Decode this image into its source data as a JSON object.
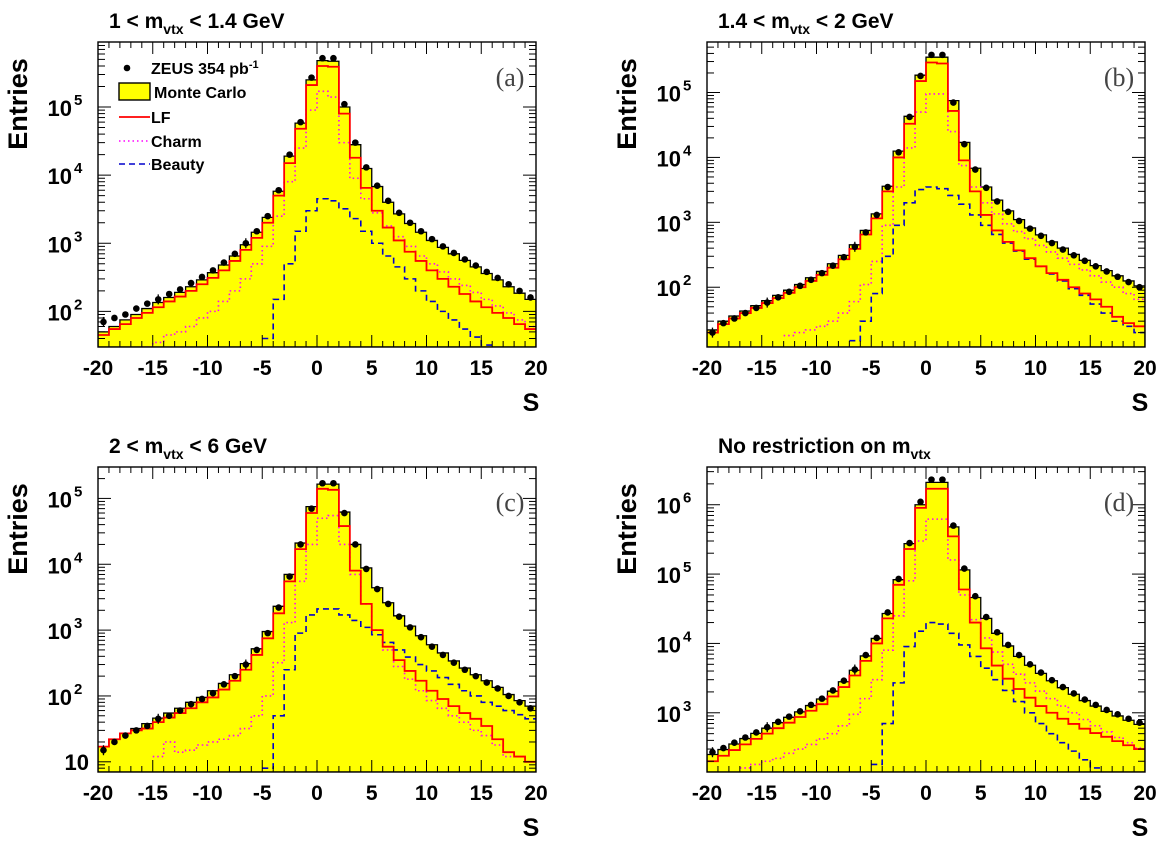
{
  "figure": {
    "legend": {
      "data": "ZEUS 354 pb",
      "data_sup": "-1",
      "mc": "Monte Carlo",
      "lf": "LF",
      "charm": "Charm",
      "beauty": "Beauty"
    },
    "colors": {
      "mc_fill": "#ffff00",
      "lf": "#ff0000",
      "charm": "#ff00ff",
      "beauty": "#0000cc",
      "data": "#000000"
    }
  },
  "chart_data": [
    {
      "type": "histogram",
      "panel": "(a)",
      "title": "1 < m_vtx < 1.4 GeV",
      "title_parts": {
        "pre": "1 < m",
        "sub": "vtx",
        "post": " < 1.4 GeV"
      },
      "xlabel": "S",
      "ylabel": "Entries",
      "xlim": [
        -20,
        20
      ],
      "ylim": [
        30,
        900000
      ],
      "log_y": true,
      "xticks": [
        "-20",
        "-15",
        "-10",
        "-5",
        "0",
        "5",
        "10",
        "15",
        "20"
      ],
      "yticks": [
        {
          "value": 100,
          "mantissa": "10",
          "exp": "2"
        },
        {
          "value": 1000,
          "mantissa": "10",
          "exp": "3"
        },
        {
          "value": 10000,
          "mantissa": "10",
          "exp": "4"
        },
        {
          "value": 100000,
          "mantissa": "10",
          "exp": "5"
        }
      ],
      "bin_edges": [
        -20,
        -19,
        -18,
        -17,
        -16,
        -15,
        -14,
        -13,
        -12,
        -11,
        -10,
        -9,
        -8,
        -7,
        -6,
        -5,
        -4,
        -3,
        -2,
        -1,
        0,
        1,
        2,
        3,
        4,
        5,
        6,
        7,
        8,
        9,
        10,
        11,
        12,
        13,
        14,
        15,
        16,
        17,
        18,
        19,
        20
      ],
      "data": [
        70,
        80,
        90,
        110,
        130,
        150,
        180,
        210,
        260,
        320,
        400,
        520,
        700,
        1000,
        1500,
        2500,
        6000,
        20000,
        60000,
        270000,
        520000,
        520000,
        110000,
        30000,
        13000,
        7000,
        4200,
        2800,
        2000,
        1500,
        1150,
        900,
        720,
        580,
        470,
        380,
        310,
        250,
        200,
        160
      ],
      "mc": [
        50,
        60,
        75,
        90,
        110,
        135,
        160,
        190,
        230,
        290,
        370,
        480,
        650,
        950,
        1450,
        2400,
        5800,
        19000,
        58000,
        250000,
        480000,
        470000,
        100000,
        28000,
        12500,
        6800,
        4000,
        2700,
        1950,
        1450,
        1100,
        870,
        700,
        560,
        450,
        360,
        290,
        230,
        185,
        150
      ],
      "lf": [
        45,
        55,
        65,
        80,
        95,
        115,
        140,
        165,
        200,
        250,
        310,
        400,
        550,
        800,
        1200,
        2000,
        5000,
        15000,
        48000,
        210000,
        400000,
        390000,
        80000,
        18000,
        6500,
        3000,
        1700,
        1100,
        750,
        550,
        400,
        300,
        230,
        180,
        140,
        115,
        95,
        80,
        65,
        55
      ],
      "charm": [
        null,
        null,
        null,
        null,
        30,
        35,
        45,
        50,
        60,
        80,
        100,
        140,
        200,
        300,
        500,
        900,
        2500,
        8000,
        25000,
        90000,
        170000,
        140000,
        30000,
        9000,
        4500,
        2800,
        1800,
        1250,
        900,
        650,
        500,
        380,
        300,
        240,
        190,
        150,
        120,
        95,
        75,
        60
      ],
      "beauty": [
        null,
        null,
        null,
        null,
        null,
        null,
        null,
        null,
        null,
        null,
        null,
        null,
        null,
        null,
        null,
        40,
        150,
        500,
        1500,
        3000,
        4500,
        4200,
        3200,
        2300,
        1500,
        1000,
        650,
        450,
        300,
        200,
        140,
        100,
        75,
        55,
        42,
        32,
        null,
        null,
        null,
        null
      ]
    },
    {
      "type": "histogram",
      "panel": "(b)",
      "title": "1.4 < m_vtx < 2 GeV",
      "title_parts": {
        "pre": "1.4 < m",
        "sub": "vtx",
        "post": " < 2 GeV"
      },
      "xlabel": "S",
      "ylabel": "Entries",
      "xlim": [
        -20,
        20
      ],
      "ylim": [
        12,
        600000
      ],
      "log_y": true,
      "xticks": [
        "-20",
        "-15",
        "-10",
        "-5",
        "0",
        "5",
        "10",
        "15",
        "20"
      ],
      "yticks": [
        {
          "value": 100,
          "mantissa": "10",
          "exp": "2"
        },
        {
          "value": 1000,
          "mantissa": "10",
          "exp": "3"
        },
        {
          "value": 10000,
          "mantissa": "10",
          "exp": "4"
        },
        {
          "value": 100000,
          "mantissa": "10",
          "exp": "5"
        }
      ],
      "bin_edges": [
        -20,
        -19,
        -18,
        -17,
        -16,
        -15,
        -14,
        -13,
        -12,
        -11,
        -10,
        -9,
        -8,
        -7,
        -6,
        -5,
        -4,
        -3,
        -2,
        -1,
        0,
        1,
        2,
        3,
        4,
        5,
        6,
        7,
        8,
        9,
        10,
        11,
        12,
        13,
        14,
        15,
        16,
        17,
        18,
        19,
        20
      ],
      "data": [
        20,
        28,
        33,
        40,
        48,
        58,
        70,
        85,
        105,
        130,
        165,
        215,
        290,
        420,
        700,
        1300,
        3500,
        12000,
        42000,
        180000,
        380000,
        380000,
        70000,
        16000,
        6500,
        3400,
        2100,
        1450,
        1050,
        800,
        620,
        480,
        380,
        310,
        255,
        210,
        175,
        145,
        120,
        100
      ],
      "mc": [
        22,
        30,
        36,
        43,
        52,
        62,
        75,
        90,
        110,
        140,
        175,
        230,
        310,
        450,
        750,
        1350,
        3600,
        12500,
        43000,
        185000,
        350000,
        350000,
        75000,
        17000,
        6800,
        3500,
        2200,
        1500,
        1100,
        820,
        640,
        500,
        400,
        320,
        260,
        215,
        180,
        150,
        125,
        105
      ],
      "lf": [
        20,
        27,
        33,
        40,
        48,
        57,
        68,
        82,
        100,
        125,
        155,
        200,
        270,
        390,
        650,
        1150,
        3000,
        10000,
        33000,
        150000,
        290000,
        280000,
        52000,
        9000,
        3000,
        1300,
        750,
        500,
        370,
        280,
        210,
        165,
        130,
        100,
        80,
        65,
        50,
        35,
        28,
        25
      ],
      "charm": [
        null,
        null,
        null,
        null,
        null,
        null,
        null,
        18,
        20,
        22,
        25,
        30,
        40,
        60,
        110,
        250,
        900,
        3500,
        14000,
        50000,
        95000,
        95000,
        25000,
        7500,
        3500,
        2000,
        1350,
        950,
        720,
        560,
        440,
        350,
        280,
        225,
        185,
        150,
        120,
        100,
        80,
        65
      ],
      "beauty": [
        null,
        null,
        null,
        null,
        null,
        null,
        null,
        null,
        null,
        null,
        null,
        null,
        null,
        15,
        30,
        80,
        300,
        900,
        2000,
        3200,
        3500,
        3300,
        2600,
        1900,
        1300,
        900,
        650,
        480,
        360,
        270,
        210,
        160,
        125,
        95,
        75,
        55,
        40,
        30,
        25,
        20
      ]
    },
    {
      "type": "histogram",
      "panel": "(c)",
      "title": "2 < m_vtx < 6 GeV",
      "title_parts": {
        "pre": "2 < m",
        "sub": "vtx",
        "post": " < 6 GeV"
      },
      "xlabel": "S",
      "ylabel": "Entries",
      "xlim": [
        -20,
        20
      ],
      "ylim": [
        7,
        300000
      ],
      "log_y": true,
      "xticks": [
        "-20",
        "-15",
        "-10",
        "-5",
        "0",
        "5",
        "10",
        "15",
        "20"
      ],
      "yticks": [
        {
          "value": 10,
          "mantissa": "10",
          "exp": ""
        },
        {
          "value": 100,
          "mantissa": "10",
          "exp": "2"
        },
        {
          "value": 1000,
          "mantissa": "10",
          "exp": "3"
        },
        {
          "value": 10000,
          "mantissa": "10",
          "exp": "4"
        },
        {
          "value": 100000,
          "mantissa": "10",
          "exp": "5"
        }
      ],
      "bin_edges": [
        -20,
        -19,
        -18,
        -17,
        -16,
        -15,
        -14,
        -13,
        -12,
        -11,
        -10,
        -9,
        -8,
        -7,
        -6,
        -5,
        -4,
        -3,
        -2,
        -1,
        0,
        1,
        2,
        3,
        4,
        5,
        6,
        7,
        8,
        9,
        10,
        11,
        12,
        13,
        14,
        15,
        16,
        17,
        18,
        19,
        20
      ],
      "data": [
        15,
        20,
        25,
        30,
        35,
        45,
        50,
        60,
        75,
        90,
        110,
        150,
        200,
        300,
        500,
        900,
        2200,
        6500,
        20000,
        70000,
        170000,
        170000,
        60000,
        20000,
        8500,
        4200,
        2500,
        1600,
        1100,
        780,
        560,
        420,
        320,
        250,
        200,
        160,
        130,
        100,
        80,
        65
      ],
      "mc": [
        17,
        22,
        27,
        32,
        38,
        46,
        55,
        65,
        80,
        95,
        120,
        155,
        210,
        310,
        520,
        950,
        2300,
        7000,
        21000,
        75000,
        165000,
        165000,
        62000,
        20000,
        8800,
        4400,
        2600,
        1650,
        1150,
        820,
        600,
        450,
        340,
        265,
        210,
        170,
        135,
        105,
        85,
        70
      ],
      "lf": [
        17,
        22,
        27,
        30,
        32,
        40,
        47,
        55,
        65,
        80,
        95,
        125,
        170,
        250,
        420,
        750,
        1800,
        5500,
        17000,
        60000,
        140000,
        135000,
        38000,
        8000,
        2500,
        1000,
        560,
        350,
        240,
        170,
        120,
        90,
        70,
        55,
        45,
        35,
        22,
        14,
        12,
        10
      ],
      "charm": [
        null,
        null,
        null,
        null,
        null,
        12,
        20,
        14,
        15,
        18,
        20,
        22,
        25,
        32,
        50,
        100,
        320,
        1300,
        5500,
        20000,
        50000,
        55000,
        20000,
        7000,
        2500,
        1000,
        500,
        280,
        180,
        120,
        85,
        65,
        50,
        40,
        30,
        25,
        18,
        12,
        null,
        null
      ],
      "beauty": [
        null,
        null,
        null,
        null,
        null,
        null,
        null,
        null,
        null,
        null,
        null,
        null,
        null,
        null,
        null,
        8,
        50,
        250,
        900,
        1700,
        2100,
        2100,
        1700,
        1400,
        1100,
        850,
        650,
        500,
        390,
        300,
        240,
        190,
        150,
        120,
        100,
        80,
        70,
        60,
        52,
        45
      ]
    },
    {
      "type": "histogram",
      "panel": "(d)",
      "title": "No restriction on m_vtx",
      "title_parts": {
        "pre": "No restriction on m",
        "sub": "vtx",
        "post": ""
      },
      "xlabel": "S",
      "ylabel": "Entries",
      "xlim": [
        -20,
        20
      ],
      "ylim": [
        140,
        3500000
      ],
      "log_y": true,
      "xticks": [
        "-20",
        "-15",
        "-10",
        "-5",
        "0",
        "5",
        "10",
        "15",
        "20"
      ],
      "yticks": [
        {
          "value": 1000,
          "mantissa": "10",
          "exp": "3"
        },
        {
          "value": 10000,
          "mantissa": "10",
          "exp": "4"
        },
        {
          "value": 100000,
          "mantissa": "10",
          "exp": "5"
        },
        {
          "value": 1000000,
          "mantissa": "10",
          "exp": "6"
        }
      ],
      "bin_edges": [
        -20,
        -19,
        -18,
        -17,
        -16,
        -15,
        -14,
        -13,
        -12,
        -11,
        -10,
        -9,
        -8,
        -7,
        -6,
        -5,
        -4,
        -3,
        -2,
        -1,
        0,
        1,
        2,
        3,
        4,
        5,
        6,
        7,
        8,
        9,
        10,
        11,
        12,
        13,
        14,
        15,
        16,
        17,
        18,
        19,
        20
      ],
      "data": [
        270,
        310,
        370,
        440,
        520,
        620,
        740,
        880,
        1050,
        1300,
        1600,
        2100,
        2900,
        4200,
        6800,
        12000,
        28000,
        85000,
        280000,
        1100000,
        2300000,
        2300000,
        500000,
        120000,
        48000,
        24000,
        14500,
        9500,
        6800,
        5000,
        3800,
        2950,
        2350,
        1900,
        1550,
        1300,
        1100,
        950,
        820,
        720
      ],
      "mc": [
        250,
        295,
        355,
        425,
        505,
        600,
        720,
        860,
        1030,
        1270,
        1580,
        2050,
        2800,
        4100,
        6600,
        11800,
        27000,
        83000,
        275000,
        1000000,
        2100000,
        2100000,
        480000,
        115000,
        46000,
        23000,
        14000,
        9200,
        6500,
        4850,
        3700,
        2900,
        2300,
        1850,
        1500,
        1250,
        1050,
        900,
        780,
        680
      ],
      "lf": [
        200,
        240,
        290,
        350,
        420,
        500,
        600,
        720,
        870,
        1070,
        1330,
        1720,
        2350,
        3450,
        5600,
        10000,
        23000,
        70000,
        230000,
        900000,
        1700000,
        1700000,
        350000,
        60000,
        20000,
        8500,
        4800,
        3100,
        2200,
        1650,
        1250,
        1000,
        820,
        690,
        590,
        510,
        450,
        390,
        340,
        300
      ],
      "charm": [
        null,
        null,
        null,
        160,
        180,
        200,
        220,
        260,
        300,
        350,
        420,
        500,
        650,
        950,
        1600,
        3000,
        8000,
        25000,
        80000,
        300000,
        620000,
        620000,
        160000,
        50000,
        22000,
        12000,
        7500,
        5000,
        3600,
        2700,
        2050,
        1600,
        1250,
        1000,
        800,
        650,
        530,
        440,
        370,
        310
      ],
      "beauty": [
        null,
        null,
        null,
        null,
        null,
        null,
        null,
        null,
        null,
        null,
        null,
        null,
        null,
        null,
        null,
        180,
        700,
        2700,
        9000,
        15000,
        20000,
        19000,
        14000,
        9500,
        6500,
        4400,
        3000,
        2100,
        1450,
        1000,
        700,
        500,
        370,
        280,
        210,
        160,
        null,
        null,
        null,
        null
      ]
    }
  ]
}
